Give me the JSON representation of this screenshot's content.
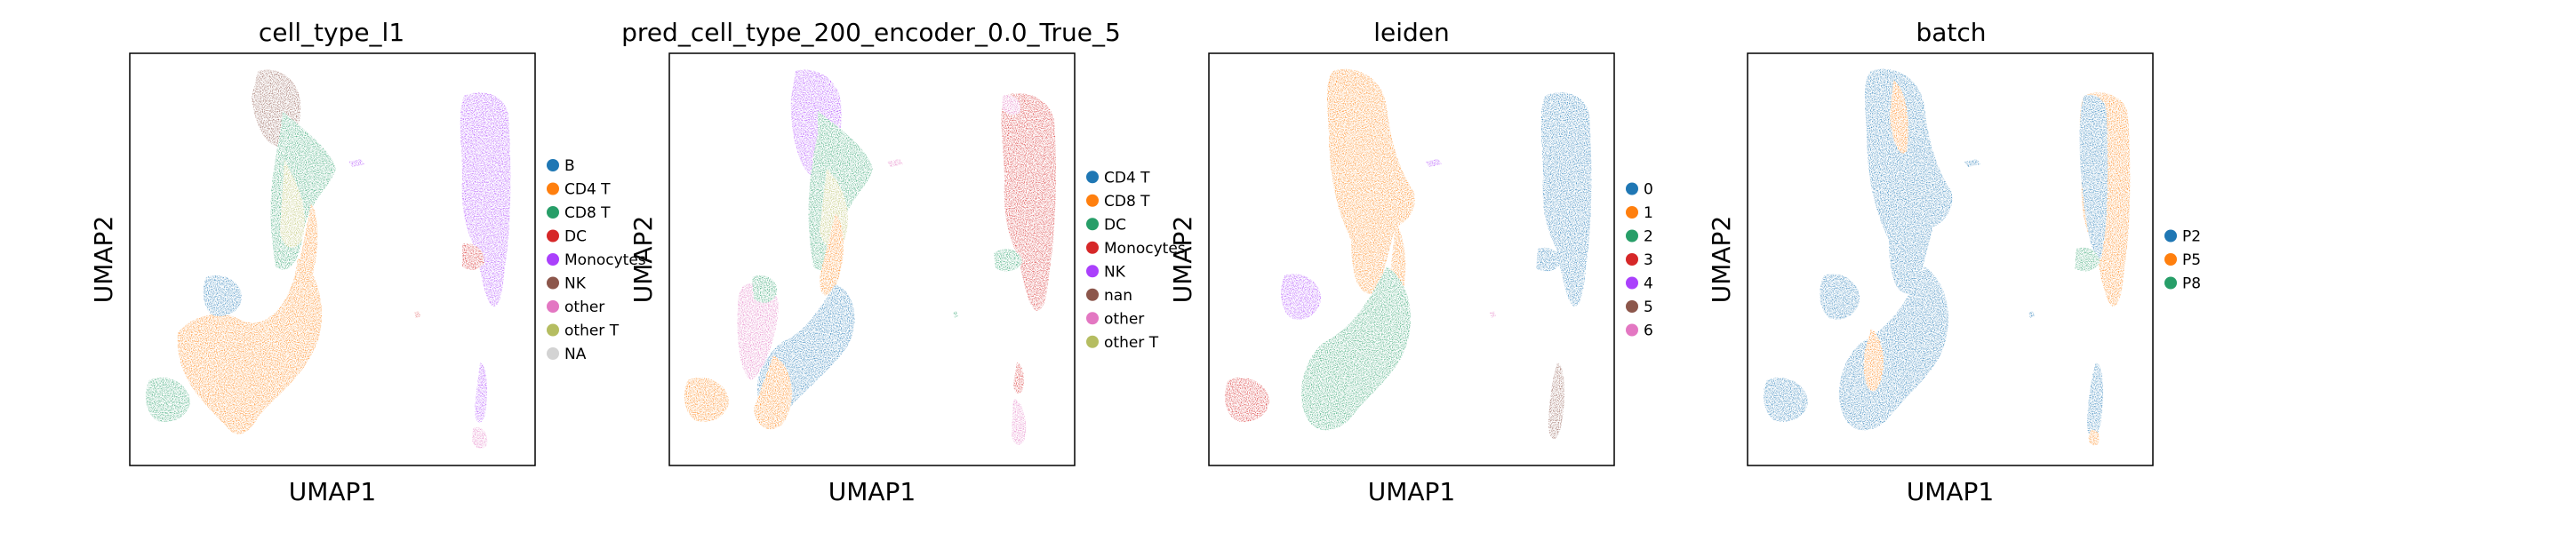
{
  "chart_data": [
    {
      "type": "scatter",
      "title": "cell_type_l1",
      "xlabel": "UMAP1",
      "ylabel": "UMAP2",
      "legend": "right",
      "grid": false,
      "series": [
        {
          "name": "B",
          "color": "#1f77b4"
        },
        {
          "name": "CD4 T",
          "color": "#ff7f0e"
        },
        {
          "name": "CD8 T",
          "color": "#279e68"
        },
        {
          "name": "DC",
          "color": "#d62728"
        },
        {
          "name": "Monocytes",
          "color": "#aa40fc"
        },
        {
          "name": "NK",
          "color": "#8c564b"
        },
        {
          "name": "other",
          "color": "#e377c2"
        },
        {
          "name": "other T",
          "color": "#b5bd61"
        },
        {
          "name": "NA",
          "color": "#d3d3d3"
        }
      ]
    },
    {
      "type": "scatter",
      "title": "pred_cell_type_200_encoder_0.0_True_5",
      "xlabel": "UMAP1",
      "ylabel": "UMAP2",
      "legend": "right",
      "grid": false,
      "series": [
        {
          "name": "CD4 T",
          "color": "#1f77b4"
        },
        {
          "name": "CD8 T",
          "color": "#ff7f0e"
        },
        {
          "name": "DC",
          "color": "#279e68"
        },
        {
          "name": "Monocytes",
          "color": "#d62728"
        },
        {
          "name": "NK",
          "color": "#aa40fc"
        },
        {
          "name": "nan",
          "color": "#8c564b"
        },
        {
          "name": "other",
          "color": "#e377c2"
        },
        {
          "name": "other T",
          "color": "#b5bd61"
        }
      ]
    },
    {
      "type": "scatter",
      "title": "leiden",
      "xlabel": "UMAP1",
      "ylabel": "UMAP2",
      "legend": "right",
      "grid": false,
      "series": [
        {
          "name": "0",
          "color": "#1f77b4"
        },
        {
          "name": "1",
          "color": "#ff7f0e"
        },
        {
          "name": "2",
          "color": "#279e68"
        },
        {
          "name": "3",
          "color": "#d62728"
        },
        {
          "name": "4",
          "color": "#aa40fc"
        },
        {
          "name": "5",
          "color": "#8c564b"
        },
        {
          "name": "6",
          "color": "#e377c2"
        }
      ]
    },
    {
      "type": "scatter",
      "title": "batch",
      "xlabel": "UMAP1",
      "ylabel": "UMAP2",
      "legend": "right",
      "grid": false,
      "series": [
        {
          "name": "P2",
          "color": "#1f77b4"
        },
        {
          "name": "P5",
          "color": "#ff7f0e"
        },
        {
          "name": "P8",
          "color": "#279e68"
        }
      ]
    }
  ]
}
